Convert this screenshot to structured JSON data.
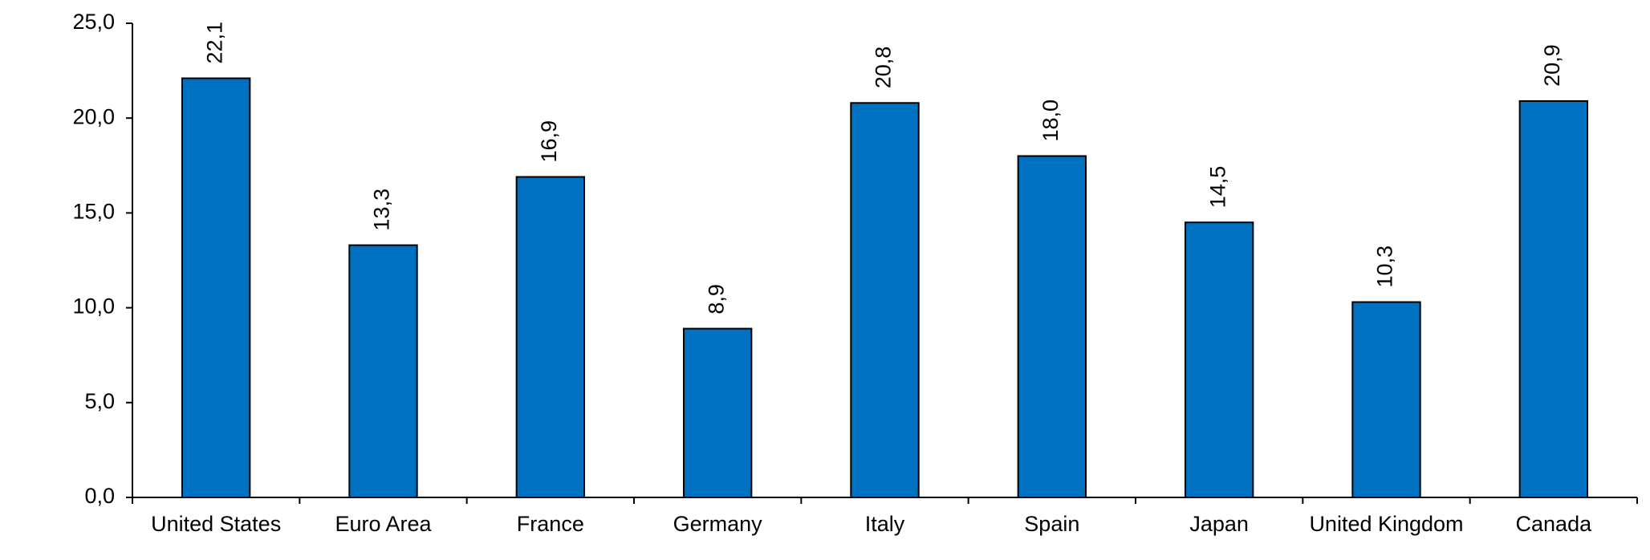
{
  "chart_data": {
    "type": "bar",
    "title": "",
    "xlabel": "",
    "ylabel": "",
    "categories": [
      "United States",
      "Euro Area",
      "France",
      "Germany",
      "Italy",
      "Spain",
      "Japan",
      "United Kingdom",
      "Canada"
    ],
    "values": [
      22.1,
      13.3,
      16.9,
      8.9,
      20.8,
      18.0,
      14.5,
      10.3,
      20.9
    ],
    "data_labels": [
      "22,1",
      "13,3",
      "16,9",
      "8,9",
      "20,8",
      "18,0",
      "14,5",
      "10,3",
      "20,9"
    ],
    "ylim": [
      0,
      25
    ],
    "yticks": [
      0,
      5,
      10,
      15,
      20,
      25
    ],
    "ytick_labels": [
      "0,0",
      "5,0",
      "10,0",
      "15,0",
      "20,0",
      "25,0"
    ],
    "grid": false,
    "legend": "none",
    "colors": {
      "bar": "#0070c0",
      "bar_outline": "#000000",
      "axis": "#000000"
    }
  }
}
